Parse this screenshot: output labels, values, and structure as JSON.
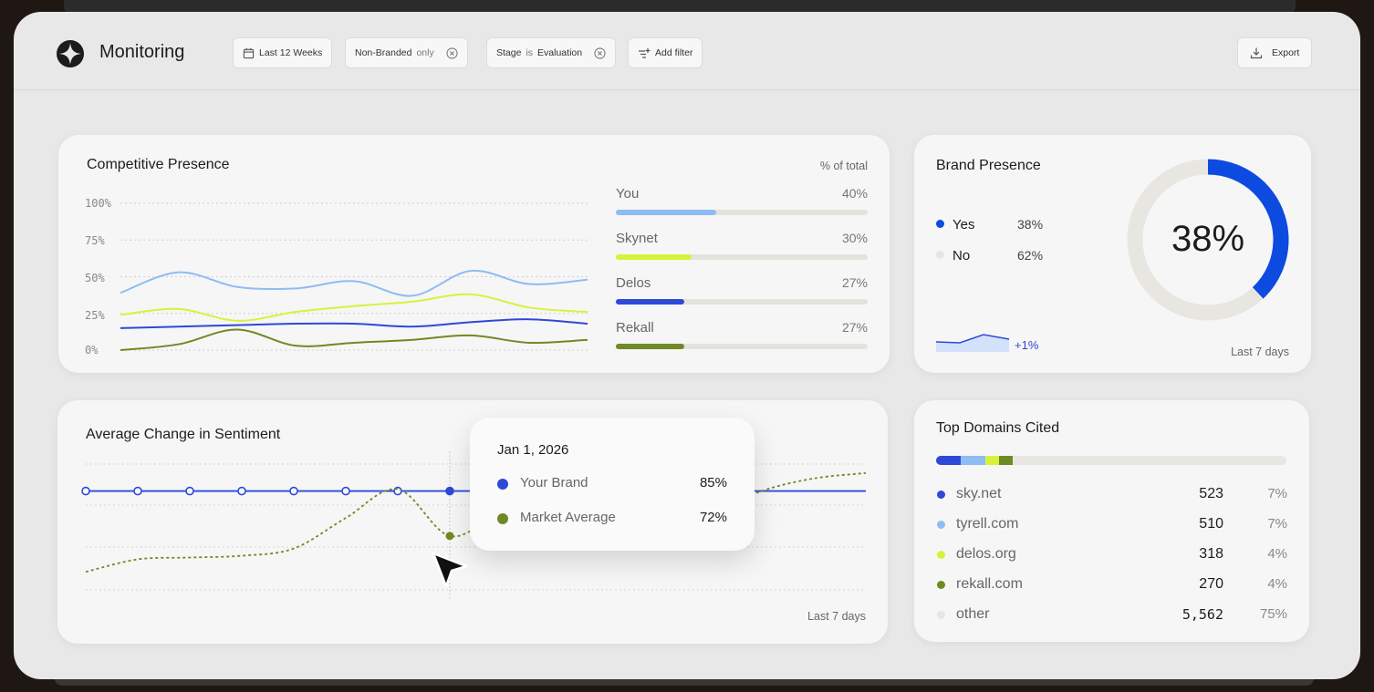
{
  "app": {
    "title": "Monitoring"
  },
  "filters": {
    "date_range": "Last 12 Weeks",
    "branded_label": "Non-Branded",
    "branded_qualifier": "only",
    "stage_label": "Stage",
    "stage_op": "is",
    "stage_value": "Evaluation",
    "add_filter": "Add filter",
    "export": "Export"
  },
  "competitive": {
    "title": "Competitive Presence",
    "subtitle": "% of total",
    "y_ticks": [
      "100%",
      "75%",
      "50%",
      "25%",
      "0%"
    ],
    "legend": [
      {
        "name": "You",
        "pct": "40%",
        "value": 40,
        "color": "#8ebcf3"
      },
      {
        "name": "Skynet",
        "pct": "30%",
        "value": 30,
        "color": "#d8f23c"
      },
      {
        "name": "Delos",
        "pct": "27%",
        "value": 27,
        "color": "#2e49d8"
      },
      {
        "name": "Rekall",
        "pct": "27%",
        "value": 27,
        "color": "#6f8a25"
      }
    ]
  },
  "chart_data": [
    {
      "type": "line",
      "title": "Competitive Presence",
      "ylim": [
        0,
        100
      ],
      "ylabel": "% of total",
      "x": [
        0,
        1,
        2,
        3,
        4,
        5,
        6,
        7,
        8
      ],
      "series": [
        {
          "name": "You",
          "values": [
            39,
            53,
            43,
            42,
            47,
            37,
            54,
            45,
            48
          ]
        },
        {
          "name": "Skynet",
          "values": [
            24,
            28,
            20,
            26,
            30,
            33,
            38,
            29,
            26
          ]
        },
        {
          "name": "Delos",
          "values": [
            15,
            16,
            17,
            18,
            18,
            16,
            19,
            21,
            18
          ]
        },
        {
          "name": "Rekall",
          "values": [
            0,
            4,
            14,
            3,
            5,
            7,
            10,
            5,
            7
          ]
        }
      ]
    },
    {
      "type": "line",
      "title": "Average Change in Sentiment",
      "x": [
        0,
        1,
        2,
        3,
        4,
        5,
        6,
        7,
        8,
        9,
        10,
        11,
        12,
        13,
        14,
        15
      ],
      "series": [
        {
          "name": "Your Brand",
          "values": [
            85,
            85,
            85,
            85,
            85,
            85,
            85,
            85,
            85,
            85,
            85,
            85,
            85,
            85,
            85,
            85
          ]
        },
        {
          "name": "Market Average",
          "values": [
            40,
            47,
            48,
            49,
            53,
            70,
            86,
            60,
            72,
            68,
            66,
            64,
            72,
            85,
            92,
            95
          ]
        }
      ]
    },
    {
      "type": "pie",
      "title": "Brand Presence",
      "categories": [
        "Yes",
        "No"
      ],
      "values": [
        38,
        62
      ]
    }
  ],
  "brand": {
    "title": "Brand Presence",
    "yes_label": "Yes",
    "yes_value": "38%",
    "no_label": "No",
    "no_value": "62%",
    "center_value": "38%",
    "change": "+1%",
    "footer": "Last 7 days",
    "yes_color": "#0d4ae0",
    "no_color": "#e8e6e1"
  },
  "sentiment": {
    "title": "Average Change in Sentiment",
    "footer": "Last 7 days",
    "tooltip": {
      "date": "Jan 1, 2026",
      "rows": [
        {
          "name": "Your Brand",
          "value": "85%",
          "color": "#2e49d8"
        },
        {
          "name": "Market Average",
          "value": "72%",
          "color": "#6f8a25"
        }
      ]
    }
  },
  "domains": {
    "title": "Top Domains Cited",
    "rows": [
      {
        "name": "sky.net",
        "count": "523",
        "share": "7%",
        "share_value": 7,
        "color": "#2e49d8"
      },
      {
        "name": "tyrell.com",
        "count": "510",
        "share": "7%",
        "share_value": 7,
        "color": "#8ebcf3"
      },
      {
        "name": "delos.org",
        "count": "318",
        "share": "4%",
        "share_value": 4,
        "color": "#d8f23c"
      },
      {
        "name": "rekall.com",
        "count": "270",
        "share": "4%",
        "share_value": 4,
        "color": "#6f8a25"
      },
      {
        "name": "other",
        "count": "5,562",
        "share": "75%",
        "share_value": 75,
        "color": "#e8e6e1"
      }
    ]
  }
}
